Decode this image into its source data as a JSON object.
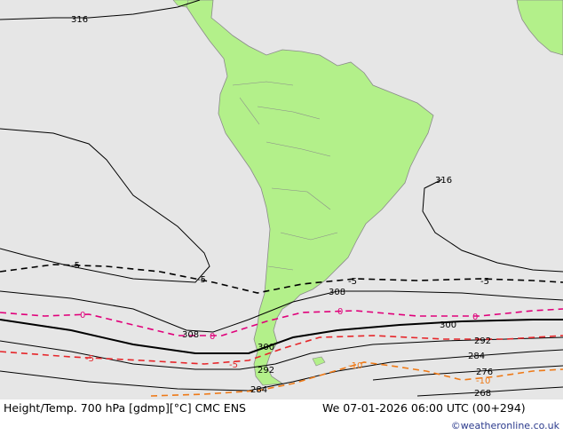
{
  "map": {
    "ocean_color": "#e6e6e6",
    "land_color": "#b3f08a",
    "land_border_color": "#8a8a8a",
    "height_contour_color": "#000000",
    "isotherm_colors": {
      "minus5": "#000000",
      "zero": "#e0007a",
      "plus5": "#e6262a",
      "plus10": "#ee7a18"
    },
    "height_labels": [
      "316",
      "316",
      "308",
      "308",
      "300",
      "300",
      "292",
      "292",
      "284",
      "284",
      "276",
      "268"
    ],
    "temperature_labels": [
      "-5",
      "-5",
      "-5",
      "-5",
      "0",
      "0",
      "0",
      "0",
      "-5",
      "-5",
      "-10",
      "-10"
    ]
  },
  "footer": {
    "title": "Height/Temp. 700 hPa [gdmp][°C] CMC ENS",
    "datetime": "We 07-01-2026 06:00 UTC (00+294)",
    "credit": "©weatheronline.co.uk"
  }
}
